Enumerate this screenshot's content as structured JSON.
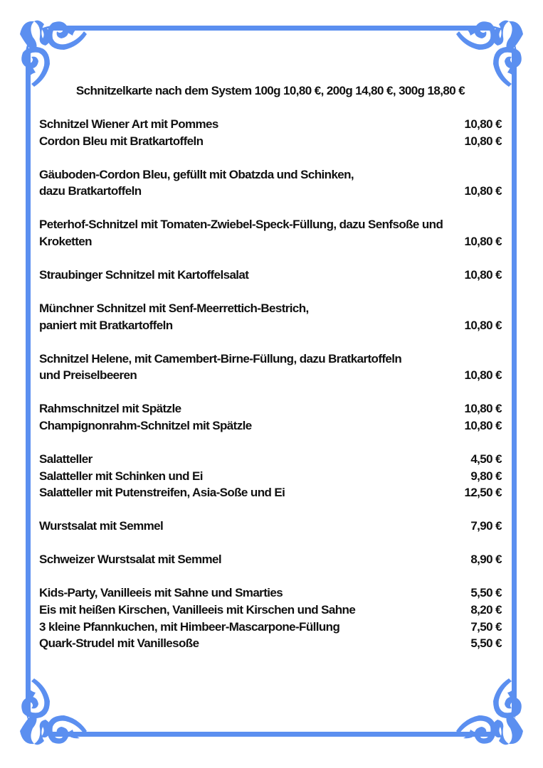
{
  "title": "Schnitzelkarte nach dem System 100g 10,80 €, 200g 14,80 €, 300g 18,80 €",
  "colors": {
    "frame": "#5b8ff0",
    "text": "#111111"
  },
  "groups": [
    {
      "items": [
        {
          "lines": [
            "Schnitzel Wiener Art mit Pommes"
          ],
          "price": "10,80 €"
        },
        {
          "lines": [
            "Cordon Bleu mit Bratkartoffeln"
          ],
          "price": "10,80 €"
        }
      ]
    },
    {
      "items": [
        {
          "lines": [
            "Gäuboden-Cordon Bleu, gefüllt mit Obatzda und Schinken,",
            "dazu Bratkartoffeln"
          ],
          "price": "10,80 €"
        }
      ]
    },
    {
      "items": [
        {
          "lines": [
            "Peterhof-Schnitzel mit Tomaten-Zwiebel-Speck-Füllung, dazu Senfsoße und",
            "Kroketten"
          ],
          "price": "10,80 €"
        }
      ]
    },
    {
      "items": [
        {
          "lines": [
            "Straubinger Schnitzel mit Kartoffelsalat"
          ],
          "price": "10,80 €"
        }
      ]
    },
    {
      "items": [
        {
          "lines": [
            "Münchner Schnitzel mit Senf-Meerrettich-Bestrich,",
            "paniert mit Bratkartoffeln"
          ],
          "price": "10,80 €"
        }
      ]
    },
    {
      "items": [
        {
          "lines": [
            "Schnitzel Helene, mit Camembert-Birne-Füllung, dazu Bratkartoffeln",
            "und Preiselbeeren"
          ],
          "price": "10,80 €"
        }
      ]
    },
    {
      "items": [
        {
          "lines": [
            "Rahmschnitzel mit Spätzle"
          ],
          "price": "10,80 €"
        },
        {
          "lines": [
            "Champignonrahm-Schnitzel mit Spätzle"
          ],
          "price": "10,80 €"
        }
      ]
    },
    {
      "items": [
        {
          "lines": [
            "Salatteller"
          ],
          "price": "4,50 €"
        },
        {
          "lines": [
            "Salatteller mit Schinken und Ei"
          ],
          "price": "9,80 €"
        },
        {
          "lines": [
            "Salatteller mit Putenstreifen, Asia-Soße und Ei"
          ],
          "price": "12,50 €"
        }
      ]
    },
    {
      "items": [
        {
          "lines": [
            "Wurstsalat mit Semmel"
          ],
          "price": "7,90 €"
        }
      ]
    },
    {
      "items": [
        {
          "lines": [
            "Schweizer Wurstsalat mit Semmel"
          ],
          "price": "8,90 €"
        }
      ]
    },
    {
      "items": [
        {
          "lines": [
            "Kids-Party, Vanilleeis mit Sahne und Smarties"
          ],
          "price": "5,50 €"
        },
        {
          "lines": [
            "Eis mit heißen Kirschen, Vanilleeis mit Kirschen und Sahne"
          ],
          "price": "8,20 €"
        },
        {
          "lines": [
            "3 kleine Pfannkuchen, mit Himbeer-Mascarpone-Füllung"
          ],
          "price": "7,50 €"
        },
        {
          "lines": [
            "Quark-Strudel mit Vanillesoße"
          ],
          "price": "5,50 €"
        }
      ]
    }
  ]
}
